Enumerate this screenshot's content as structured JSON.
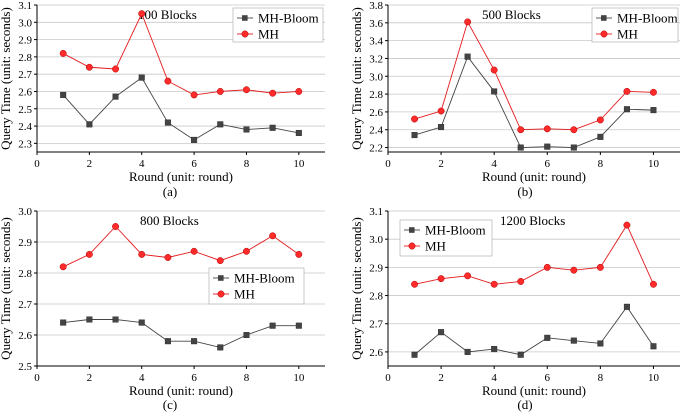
{
  "chart_data": [
    {
      "type": "line",
      "panel_label": "(a)",
      "title": "100 Blocks",
      "xlabel": "Round (unit: round)",
      "ylabel": "Query Time (unit: seconds)",
      "xlim": [
        0,
        11
      ],
      "ylim": [
        2.25,
        3.1
      ],
      "xticks": [
        0,
        2,
        4,
        6,
        8,
        10
      ],
      "yticks": [
        2.3,
        2.4,
        2.5,
        2.6,
        2.7,
        2.8,
        2.9,
        3.0,
        3.1
      ],
      "grid": true,
      "legend_position": "top-right",
      "x": [
        1,
        2,
        3,
        4,
        5,
        6,
        7,
        8,
        9,
        10
      ],
      "series": [
        {
          "name": "MH-Bloom",
          "color": "#444444",
          "marker": "square",
          "values": [
            2.58,
            2.41,
            2.57,
            2.68,
            2.42,
            2.32,
            2.41,
            2.38,
            2.39,
            2.36
          ]
        },
        {
          "name": "MH",
          "color": "#e41a1c",
          "marker": "circle",
          "values": [
            2.82,
            2.74,
            2.73,
            3.05,
            2.66,
            2.58,
            2.6,
            2.61,
            2.59,
            2.6
          ]
        }
      ]
    },
    {
      "type": "line",
      "panel_label": "(b)",
      "title": "500 Blocks",
      "xlabel": "Round (unit: round)",
      "ylabel": "Query Time (unit: seconds)",
      "xlim": [
        0,
        11
      ],
      "ylim": [
        2.15,
        3.8
      ],
      "xticks": [
        0,
        2,
        4,
        6,
        8,
        10
      ],
      "yticks": [
        2.2,
        2.4,
        2.6,
        2.8,
        3.0,
        3.2,
        3.4,
        3.6,
        3.8
      ],
      "grid": true,
      "legend_position": "top-right",
      "x": [
        1,
        2,
        3,
        4,
        5,
        6,
        7,
        8,
        9,
        10
      ],
      "series": [
        {
          "name": "MH-Bloom",
          "color": "#444444",
          "marker": "square",
          "values": [
            2.34,
            2.43,
            3.22,
            2.83,
            2.2,
            2.21,
            2.2,
            2.32,
            2.63,
            2.62
          ]
        },
        {
          "name": "MH",
          "color": "#e41a1c",
          "marker": "circle",
          "values": [
            2.52,
            2.61,
            3.61,
            3.07,
            2.4,
            2.41,
            2.4,
            2.51,
            2.83,
            2.82
          ]
        }
      ]
    },
    {
      "type": "line",
      "panel_label": "(c)",
      "title": "800 Blocks",
      "xlabel": "Round (unit: round)",
      "ylabel": "Query Time (unit: seconds)",
      "xlim": [
        0,
        11
      ],
      "ylim": [
        2.5,
        3.0
      ],
      "xticks": [
        0,
        2,
        4,
        6,
        8,
        10
      ],
      "yticks": [
        2.5,
        2.6,
        2.7,
        2.8,
        2.9,
        3.0
      ],
      "grid": true,
      "legend_position": "center-right",
      "x": [
        1,
        2,
        3,
        4,
        5,
        6,
        7,
        8,
        9,
        10
      ],
      "series": [
        {
          "name": "MH-Bloom",
          "color": "#444444",
          "marker": "square",
          "values": [
            2.64,
            2.65,
            2.65,
            2.64,
            2.58,
            2.58,
            2.56,
            2.6,
            2.63,
            2.63
          ]
        },
        {
          "name": "MH",
          "color": "#e41a1c",
          "marker": "circle",
          "values": [
            2.82,
            2.86,
            2.95,
            2.86,
            2.85,
            2.87,
            2.84,
            2.87,
            2.92,
            2.86
          ]
        }
      ]
    },
    {
      "type": "line",
      "panel_label": "(d)",
      "title": "1200 Blocks",
      "xlabel": "Round (unit: round)",
      "ylabel": "Query Time (unit: seconds)",
      "xlim": [
        0,
        11
      ],
      "ylim": [
        2.55,
        3.1
      ],
      "xticks": [
        0,
        2,
        4,
        6,
        8,
        10
      ],
      "yticks": [
        2.6,
        2.7,
        2.8,
        2.9,
        3.0,
        3.1
      ],
      "grid": true,
      "legend_position": "top-left",
      "x": [
        1,
        2,
        3,
        4,
        5,
        6,
        7,
        8,
        9,
        10
      ],
      "series": [
        {
          "name": "MH-Bloom",
          "color": "#444444",
          "marker": "square",
          "values": [
            2.59,
            2.67,
            2.6,
            2.61,
            2.59,
            2.65,
            2.64,
            2.63,
            2.76,
            2.62
          ]
        },
        {
          "name": "MH",
          "color": "#e41a1c",
          "marker": "circle",
          "values": [
            2.84,
            2.86,
            2.87,
            2.84,
            2.85,
            2.9,
            2.89,
            2.9,
            3.05,
            2.84
          ]
        }
      ]
    }
  ]
}
